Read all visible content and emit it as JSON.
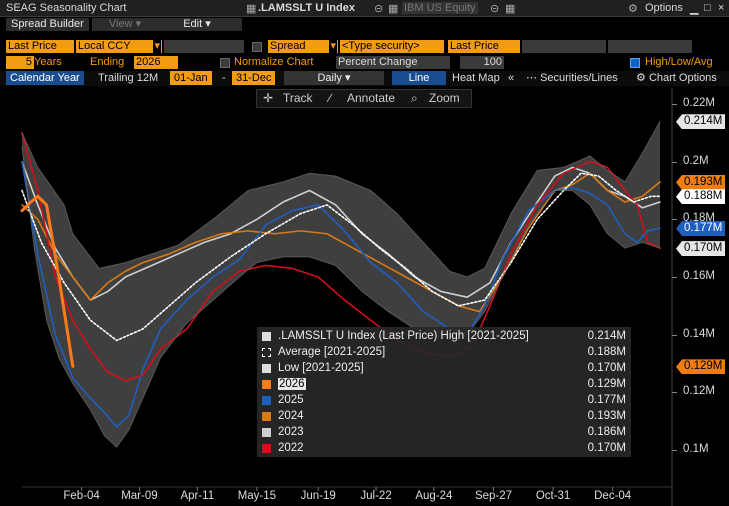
{
  "window": {
    "title": "SEAG Seasonality Chart",
    "security1": ".LAMSSLT U Index",
    "security2": "IBM US Equity",
    "options": "Options"
  },
  "menu": {
    "spread_builder": "Spread Builder",
    "view": "View",
    "edit": "Edit"
  },
  "controls": {
    "field": "Last Price",
    "currency": "Local CCY",
    "spread": "Spread",
    "type_security": "<Type security>",
    "field2": "Last Price",
    "years": "5",
    "years_label": "Years",
    "ending_label": "Ending",
    "ending_year": "2026",
    "normalize_label": "Normalize Chart",
    "normalize_mode": "Percent Change",
    "normalize_base": "100",
    "hla_label": "High/Low/Avg"
  },
  "toolbar": {
    "calendar_year": "Calendar Year",
    "trailing": "Trailing 12M",
    "start": "01-Jan",
    "dash": "-",
    "end": "31-Dec",
    "frequency": "Daily",
    "line": "Line",
    "heat_map": "Heat Map",
    "collapse": "«",
    "securities_lines": "Securities/Lines",
    "chart_options": "Chart Options"
  },
  "chart_tools": {
    "track": "Track",
    "annotate": "Annotate",
    "zoom": "Zoom"
  },
  "chart_data": {
    "type": "line",
    "title": "",
    "xlabel": "",
    "ylabel": "",
    "x_range": [
      1,
      365
    ],
    "ylim": [
      0.095,
      0.226
    ],
    "x_ticks": [
      {
        "label": "Feb-04",
        "day": 35
      },
      {
        "label": "Mar-09",
        "day": 68
      },
      {
        "label": "Apr-11",
        "day": 101
      },
      {
        "label": "May-15",
        "day": 135
      },
      {
        "label": "Jun-19",
        "day": 170
      },
      {
        "label": "Jul-22",
        "day": 203
      },
      {
        "label": "Aug-24",
        "day": 236
      },
      {
        "label": "Sep-27",
        "day": 270
      },
      {
        "label": "Oct-31",
        "day": 304
      },
      {
        "label": "Dec-04",
        "day": 338
      }
    ],
    "y_ticks": [
      {
        "label": "0.22M",
        "value": 0.22
      },
      {
        "label": "0.2M",
        "value": 0.2
      },
      {
        "label": "0.18M",
        "value": 0.18
      },
      {
        "label": "0.16M",
        "value": 0.16
      },
      {
        "label": "0.14M",
        "value": 0.14
      },
      {
        "label": "0.12M",
        "value": 0.12
      },
      {
        "label": "0.1M",
        "value": 0.1
      }
    ],
    "series": [
      {
        "name": "High [2021-2025]",
        "color": "#6e6e6e",
        "x": [
          1,
          10,
          25,
          30,
          45,
          60,
          75,
          90,
          110,
          130,
          150,
          165,
          180,
          200,
          215,
          230,
          245,
          255,
          265,
          280,
          295,
          310,
          325,
          335,
          345,
          355,
          365
        ],
        "values": [
          0.21,
          0.198,
          0.185,
          0.175,
          0.163,
          0.165,
          0.168,
          0.171,
          0.18,
          0.19,
          0.193,
          0.196,
          0.195,
          0.19,
          0.182,
          0.172,
          0.162,
          0.16,
          0.163,
          0.182,
          0.197,
          0.198,
          0.202,
          0.197,
          0.193,
          0.203,
          0.214
        ]
      },
      {
        "name": "Low [2021-2025]",
        "color": "#6e6e6e",
        "x": [
          1,
          8,
          15,
          22,
          30,
          40,
          48,
          55,
          62,
          70,
          80,
          95,
          110,
          125,
          135,
          150,
          165,
          180,
          195,
          210,
          225,
          240,
          255,
          265,
          275,
          290,
          305,
          315,
          325,
          335,
          345,
          355,
          365
        ],
        "values": [
          0.205,
          0.17,
          0.145,
          0.132,
          0.123,
          0.114,
          0.105,
          0.101,
          0.107,
          0.118,
          0.132,
          0.144,
          0.152,
          0.16,
          0.165,
          0.167,
          0.167,
          0.164,
          0.155,
          0.148,
          0.142,
          0.139,
          0.14,
          0.148,
          0.16,
          0.178,
          0.19,
          0.19,
          0.185,
          0.175,
          0.17,
          0.172,
          0.17
        ]
      },
      {
        "name": "Average [2021-2025]",
        "color": "#ffffff",
        "dashed": true,
        "x": [
          1,
          12,
          25,
          40,
          55,
          70,
          85,
          100,
          120,
          140,
          160,
          175,
          190,
          205,
          220,
          235,
          250,
          265,
          280,
          295,
          310,
          320,
          330,
          340,
          350,
          360,
          365
        ],
        "values": [
          0.19,
          0.172,
          0.158,
          0.145,
          0.138,
          0.142,
          0.15,
          0.158,
          0.167,
          0.175,
          0.182,
          0.185,
          0.178,
          0.17,
          0.163,
          0.155,
          0.15,
          0.152,
          0.165,
          0.18,
          0.19,
          0.196,
          0.195,
          0.19,
          0.186,
          0.188,
          0.188
        ]
      },
      {
        "name": "2026",
        "color": "#ff7a1a",
        "width": 3,
        "x": [
          1,
          6,
          10,
          15,
          22,
          30
        ],
        "values": [
          0.183,
          0.186,
          0.188,
          0.185,
          0.16,
          0.129
        ]
      },
      {
        "name": "2025",
        "color": "#1e5fc0",
        "x": [
          1,
          10,
          20,
          30,
          40,
          48,
          55,
          62,
          70,
          80,
          95,
          110,
          125,
          140,
          155,
          170,
          185,
          200,
          215,
          230,
          245,
          255,
          265,
          275,
          290,
          305,
          315,
          325,
          335,
          345,
          352,
          358,
          365
        ],
        "values": [
          0.2,
          0.168,
          0.14,
          0.125,
          0.118,
          0.113,
          0.108,
          0.112,
          0.128,
          0.142,
          0.152,
          0.16,
          0.166,
          0.178,
          0.183,
          0.185,
          0.176,
          0.165,
          0.158,
          0.148,
          0.142,
          0.14,
          0.15,
          0.166,
          0.183,
          0.19,
          0.191,
          0.189,
          0.185,
          0.175,
          0.172,
          0.176,
          0.177
        ]
      },
      {
        "name": "2024",
        "color": "#d97a12",
        "x": [
          1,
          10,
          20,
          30,
          40,
          50,
          60,
          70,
          85,
          100,
          115,
          130,
          145,
          160,
          175,
          190,
          205,
          220,
          235,
          250,
          262,
          275,
          290,
          305,
          315,
          325,
          335,
          345,
          355,
          365
        ],
        "values": [
          0.185,
          0.18,
          0.168,
          0.16,
          0.152,
          0.158,
          0.162,
          0.165,
          0.168,
          0.172,
          0.175,
          0.176,
          0.175,
          0.176,
          0.175,
          0.17,
          0.165,
          0.16,
          0.155,
          0.15,
          0.148,
          0.16,
          0.177,
          0.19,
          0.192,
          0.196,
          0.19,
          0.186,
          0.188,
          0.193
        ]
      },
      {
        "name": "2023",
        "color": "#cfcfcf",
        "x": [
          1,
          10,
          20,
          30,
          40,
          50,
          60,
          75,
          90,
          105,
          120,
          135,
          150,
          165,
          180,
          195,
          210,
          225,
          240,
          255,
          268,
          280,
          295,
          305,
          315,
          325,
          335,
          345,
          355,
          365
        ],
        "values": [
          0.2,
          0.185,
          0.17,
          0.16,
          0.152,
          0.155,
          0.16,
          0.164,
          0.168,
          0.172,
          0.175,
          0.18,
          0.186,
          0.19,
          0.185,
          0.175,
          0.168,
          0.16,
          0.155,
          0.153,
          0.158,
          0.172,
          0.186,
          0.195,
          0.198,
          0.196,
          0.19,
          0.188,
          0.184,
          0.186
        ]
      },
      {
        "name": "2022",
        "color": "#d0101a",
        "x": [
          1,
          10,
          20,
          30,
          40,
          50,
          60,
          70,
          80,
          95,
          110,
          125,
          140,
          155,
          170,
          185,
          200,
          215,
          230,
          245,
          258,
          268,
          280,
          295,
          310,
          325,
          335,
          345,
          352,
          358,
          365
        ],
        "values": [
          0.21,
          0.19,
          0.16,
          0.145,
          0.135,
          0.127,
          0.124,
          0.126,
          0.135,
          0.142,
          0.155,
          0.162,
          0.164,
          0.163,
          0.16,
          0.152,
          0.145,
          0.138,
          0.134,
          0.132,
          0.136,
          0.15,
          0.168,
          0.185,
          0.196,
          0.2,
          0.198,
          0.19,
          0.185,
          0.172,
          0.17
        ]
      }
    ],
    "grid": false,
    "legend_position": "bottom-center",
    "legend": [
      {
        "label": ".LAMSSLT U Index (Last Price) High [2021-2025]",
        "value": "0.214M",
        "swatch": "#dddddd",
        "style": "solid"
      },
      {
        "label": "Average  [2021-2025]",
        "value": "0.188M",
        "swatch": "#ffffff",
        "style": "dashed"
      },
      {
        "label": "Low  [2021-2025]",
        "value": "0.170M",
        "swatch": "#dddddd",
        "style": "solid"
      },
      {
        "label": "2026",
        "value": "0.129M",
        "swatch": "#ff7a1a",
        "style": "solid"
      },
      {
        "label": "2025",
        "value": "0.177M",
        "swatch": "#1e5fc0",
        "style": "solid"
      },
      {
        "label": "2024",
        "value": "0.193M",
        "swatch": "#d97a12",
        "style": "solid"
      },
      {
        "label": "2023",
        "value": "0.186M",
        "swatch": "#cfcfcf",
        "style": "solid"
      },
      {
        "label": "2022",
        "value": "0.170M",
        "swatch": "#d0101a",
        "style": "solid"
      }
    ],
    "value_tags": [
      {
        "label": "0.214M",
        "value": 0.214,
        "bg": "#e6e6e6",
        "fg": "#000000"
      },
      {
        "label": "0.193M",
        "value": 0.193,
        "bg": "#f07c12",
        "fg": "#000000"
      },
      {
        "label": "0.188M",
        "value": 0.188,
        "bg": "#ffffff",
        "fg": "#000000"
      },
      {
        "label": "0.177M",
        "value": 0.177,
        "bg": "#1e5fc0",
        "fg": "#ffffff"
      },
      {
        "label": "0.170M",
        "value": 0.17,
        "bg": "#e6e6e6",
        "fg": "#000000"
      },
      {
        "label": "0.129M",
        "value": 0.129,
        "bg": "#f07c12",
        "fg": "#000000"
      }
    ]
  }
}
